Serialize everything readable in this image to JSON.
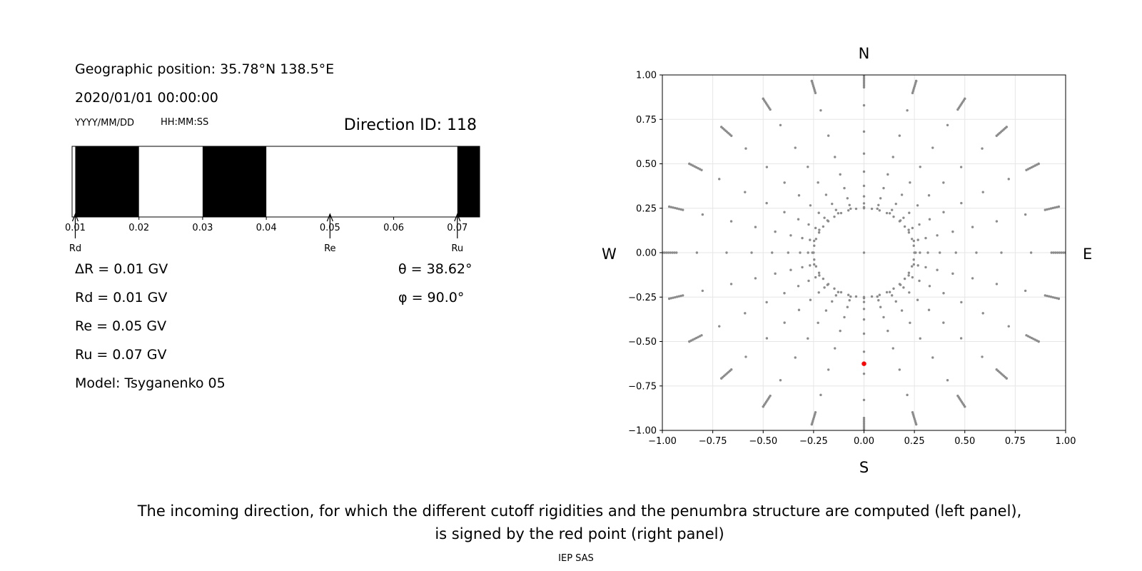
{
  "info": {
    "geo_position": "Geographic position: 35.78°N 138.5°E",
    "datetime": "2020/01/01 00:00:00",
    "date_format": "YYYY/MM/DD",
    "time_format": "HH:MM:SS",
    "direction_id": "Direction ID: 118",
    "delta_r": "ΔR = 0.01 GV",
    "rd": "Rd = 0.01 GV",
    "re": "Re = 0.05 GV",
    "ru": "Ru = 0.07 GV",
    "model": "Model: Tsyganenko 05",
    "theta": "θ = 38.62°",
    "phi": "φ = 90.0°"
  },
  "caption": {
    "line1": "The incoming direction, for which the different cutoff rigidities and the penumbra structure are computed (left panel),",
    "line2": "is signed by the red point (right panel)",
    "footer": "IEP SAS"
  },
  "colors": {
    "forbidden": "#000000",
    "allowed": "#ffffff",
    "grid_points": "#8c8c8c",
    "selected": "#ff0000"
  },
  "chart_data": [
    {
      "type": "bar",
      "name": "penumbra",
      "xlim": [
        0.0095,
        0.0735
      ],
      "ticks": [
        0.01,
        0.02,
        0.03,
        0.04,
        0.05,
        0.06,
        0.07
      ],
      "tick_labels": [
        "0.01",
        "0.02",
        "0.03",
        "0.04",
        "0.05",
        "0.06",
        "0.07"
      ],
      "forbidden_bands": [
        [
          0.01,
          0.02
        ],
        [
          0.03,
          0.04
        ],
        [
          0.07,
          0.0735
        ]
      ],
      "markers": [
        {
          "label": "Rd",
          "value": 0.01
        },
        {
          "label": "Re",
          "value": 0.05
        },
        {
          "label": "Ru",
          "value": 0.07
        }
      ]
    },
    {
      "type": "scatter",
      "name": "directions",
      "xlim": [
        -1.0,
        1.0
      ],
      "ylim": [
        -1.0,
        1.0
      ],
      "grid": true,
      "xticks": [
        -1.0,
        -0.75,
        -0.5,
        -0.25,
        0.0,
        0.25,
        0.5,
        0.75,
        1.0
      ],
      "xtick_labels": [
        "−1.00",
        "−0.75",
        "−0.50",
        "−0.25",
        "0.00",
        "0.25",
        "0.50",
        "0.75",
        "1.00"
      ],
      "yticks": [
        -1.0,
        -0.75,
        -0.5,
        -0.25,
        0.0,
        0.25,
        0.5,
        0.75,
        1.0
      ],
      "ytick_labels": [
        "−1.00",
        "−0.75",
        "−0.50",
        "−0.25",
        "0.00",
        "0.25",
        "0.50",
        "0.75",
        "1.00"
      ],
      "compass": {
        "north": "N",
        "south": "S",
        "west": "W",
        "east": "E"
      },
      "point_grid": {
        "center": [
          0,
          0
        ],
        "inner_ring_radius": 0.25,
        "ray_count": 24,
        "ray_start_radius": 0.25,
        "ray_end_radius": 1.0
      },
      "selected_point": {
        "x": 0.0,
        "y": -0.625
      }
    }
  ]
}
